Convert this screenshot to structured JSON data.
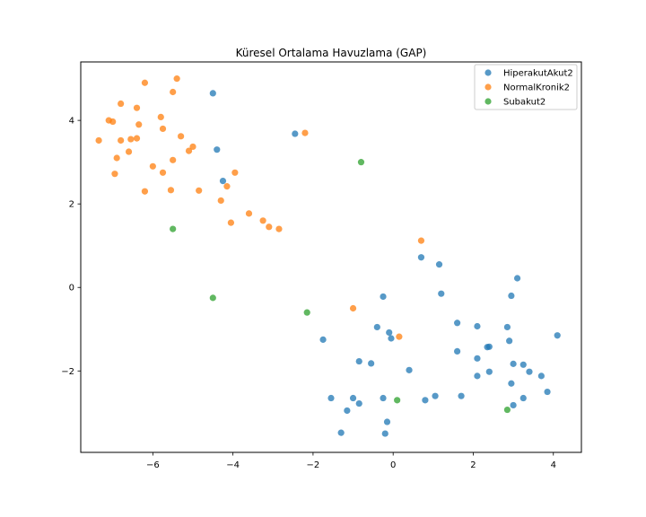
{
  "chart_data": {
    "type": "scatter",
    "title": "Küresel Ortalama Havuzlama (GAP)",
    "xlabel": "",
    "ylabel": "",
    "xlim": [
      -7.8,
      4.7
    ],
    "ylim": [
      -3.95,
      5.4
    ],
    "x_ticks": [
      -6,
      -4,
      -2,
      0,
      2,
      4
    ],
    "y_ticks": [
      -2,
      0,
      2,
      4
    ],
    "grid": false,
    "legend_position": "top-right",
    "series": [
      {
        "name": "HiperakutAkut2",
        "color": "#1f77b4",
        "points": [
          [
            -4.5,
            4.65
          ],
          [
            -4.4,
            3.3
          ],
          [
            -4.25,
            2.55
          ],
          [
            -2.45,
            3.68
          ],
          [
            0.7,
            0.72
          ],
          [
            1.15,
            0.55
          ],
          [
            1.2,
            -0.15
          ],
          [
            -0.25,
            -0.22
          ],
          [
            -1.75,
            -1.25
          ],
          [
            -0.4,
            -0.95
          ],
          [
            -0.1,
            -1.08
          ],
          [
            -0.05,
            -1.22
          ],
          [
            -0.85,
            -1.77
          ],
          [
            -0.55,
            -1.82
          ],
          [
            0.4,
            -1.98
          ],
          [
            -1.55,
            -2.65
          ],
          [
            -1.0,
            -2.65
          ],
          [
            -0.85,
            -2.78
          ],
          [
            -0.25,
            -2.65
          ],
          [
            -1.15,
            -2.95
          ],
          [
            -0.15,
            -3.22
          ],
          [
            -1.3,
            -3.48
          ],
          [
            -0.2,
            -3.5
          ],
          [
            0.8,
            -2.7
          ],
          [
            1.05,
            -2.6
          ],
          [
            1.6,
            -0.85
          ],
          [
            2.1,
            -0.93
          ],
          [
            1.6,
            -1.53
          ],
          [
            2.1,
            -1.7
          ],
          [
            2.35,
            -1.43
          ],
          [
            2.4,
            -1.42
          ],
          [
            2.1,
            -2.12
          ],
          [
            2.4,
            -2.02
          ],
          [
            1.7,
            -2.6
          ],
          [
            2.85,
            -0.95
          ],
          [
            2.9,
            -1.28
          ],
          [
            2.95,
            -0.2
          ],
          [
            3.1,
            0.22
          ],
          [
            3.0,
            -1.83
          ],
          [
            3.25,
            -1.85
          ],
          [
            3.4,
            -2.02
          ],
          [
            2.95,
            -2.3
          ],
          [
            3.7,
            -2.12
          ],
          [
            3.25,
            -2.65
          ],
          [
            3.0,
            -2.82
          ],
          [
            3.85,
            -2.5
          ],
          [
            4.1,
            -1.15
          ]
        ]
      },
      {
        "name": "NormalKronik2",
        "color": "#ff7f0e",
        "points": [
          [
            -5.4,
            5.0
          ],
          [
            -6.2,
            4.9
          ],
          [
            -5.5,
            4.68
          ],
          [
            -6.8,
            4.4
          ],
          [
            -6.4,
            4.3
          ],
          [
            -7.1,
            4.0
          ],
          [
            -7.0,
            3.97
          ],
          [
            -5.8,
            4.08
          ],
          [
            -6.35,
            3.9
          ],
          [
            -5.75,
            3.8
          ],
          [
            -5.3,
            3.62
          ],
          [
            -7.35,
            3.52
          ],
          [
            -6.8,
            3.52
          ],
          [
            -6.55,
            3.55
          ],
          [
            -6.4,
            3.57
          ],
          [
            -5.1,
            3.27
          ],
          [
            -5.0,
            3.37
          ],
          [
            -6.6,
            3.25
          ],
          [
            -6.9,
            3.1
          ],
          [
            -5.5,
            3.05
          ],
          [
            -6.0,
            2.9
          ],
          [
            -6.95,
            2.72
          ],
          [
            -5.75,
            2.75
          ],
          [
            -3.95,
            2.75
          ],
          [
            -6.2,
            2.3
          ],
          [
            -5.55,
            2.33
          ],
          [
            -4.85,
            2.32
          ],
          [
            -4.15,
            2.42
          ],
          [
            -4.3,
            2.08
          ],
          [
            -3.6,
            1.77
          ],
          [
            -4.05,
            1.55
          ],
          [
            -3.25,
            1.6
          ],
          [
            -3.1,
            1.45
          ],
          [
            -2.85,
            1.4
          ],
          [
            -2.2,
            3.7
          ],
          [
            0.7,
            1.12
          ],
          [
            -1.0,
            -0.5
          ],
          [
            0.15,
            -1.18
          ]
        ]
      },
      {
        "name": "Subakut2",
        "color": "#2ca02c",
        "points": [
          [
            -0.8,
            3.0
          ],
          [
            -5.5,
            1.4
          ],
          [
            -4.5,
            -0.25
          ],
          [
            -2.15,
            -0.6
          ],
          [
            0.1,
            -2.7
          ],
          [
            2.85,
            -2.93
          ]
        ]
      }
    ]
  }
}
